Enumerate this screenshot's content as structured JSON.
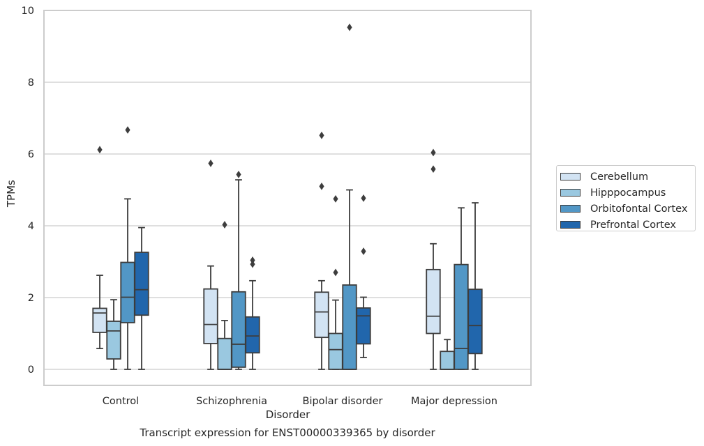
{
  "caption": "Transcript expression for ENST00000339365 by disorder",
  "chart_data": {
    "type": "box",
    "xlabel": "Disorder",
    "ylabel": "TPMs",
    "ylim": [
      -0.45,
      10
    ],
    "yticks": [
      0,
      2,
      4,
      6,
      8,
      10
    ],
    "grid": "horizontal",
    "legend_position": "right",
    "categories": [
      "Control",
      "Schizophrenia",
      "Bipolar disorder",
      "Major depression"
    ],
    "series": [
      {
        "name": "Cerebellum",
        "color": "#d2e3f3",
        "boxes": [
          {
            "whisker_low": 0.58,
            "q1": 1.03,
            "median": 1.57,
            "q3": 1.7,
            "whisker_high": 2.62,
            "outliers": [
              6.12
            ]
          },
          {
            "whisker_low": 0.0,
            "q1": 0.72,
            "median": 1.25,
            "q3": 2.24,
            "whisker_high": 2.88,
            "outliers": [
              5.74
            ]
          },
          {
            "whisker_low": 0.0,
            "q1": 0.89,
            "median": 1.6,
            "q3": 2.15,
            "whisker_high": 2.47,
            "outliers": [
              5.1,
              6.52
            ]
          },
          {
            "whisker_low": 0.0,
            "q1": 1.0,
            "median": 1.48,
            "q3": 2.78,
            "whisker_high": 3.5,
            "outliers": [
              5.58,
              6.04
            ]
          }
        ]
      },
      {
        "name": "Hipppocampus",
        "color": "#9ac8e0",
        "boxes": [
          {
            "whisker_low": 0.0,
            "q1": 0.29,
            "median": 1.07,
            "q3": 1.34,
            "whisker_high": 1.94,
            "outliers": []
          },
          {
            "whisker_low": 0.0,
            "q1": 0.0,
            "median": 0.0,
            "q3": 0.86,
            "whisker_high": 1.36,
            "outliers": [
              4.03
            ]
          },
          {
            "whisker_low": 0.0,
            "q1": 0.0,
            "median": 0.55,
            "q3": 1.0,
            "whisker_high": 1.93,
            "outliers": [
              2.7,
              4.75
            ]
          },
          {
            "whisker_low": 0.0,
            "q1": 0.0,
            "median": 0.0,
            "q3": 0.5,
            "whisker_high": 0.83,
            "outliers": []
          }
        ]
      },
      {
        "name": "Orbitofontal Cortex",
        "color": "#5297c6",
        "boxes": [
          {
            "whisker_low": 0.0,
            "q1": 1.3,
            "median": 2.01,
            "q3": 2.98,
            "whisker_high": 4.75,
            "outliers": [
              6.67
            ]
          },
          {
            "whisker_low": 0.0,
            "q1": 0.06,
            "median": 0.7,
            "q3": 2.16,
            "whisker_high": 5.28,
            "outliers": [
              5.43
            ]
          },
          {
            "whisker_low": 0.0,
            "q1": 0.0,
            "median": 0.0,
            "q3": 2.35,
            "whisker_high": 5.0,
            "outliers": [
              9.53
            ]
          },
          {
            "whisker_low": 0.0,
            "q1": 0.0,
            "median": 0.58,
            "q3": 2.92,
            "whisker_high": 4.5,
            "outliers": []
          }
        ]
      },
      {
        "name": "Prefrontal Cortex",
        "color": "#2166ac",
        "boxes": [
          {
            "whisker_low": 0.0,
            "q1": 1.51,
            "median": 2.22,
            "q3": 3.26,
            "whisker_high": 3.95,
            "outliers": []
          },
          {
            "whisker_low": 0.0,
            "q1": 0.46,
            "median": 0.93,
            "q3": 1.46,
            "whisker_high": 2.47,
            "outliers": [
              2.93,
              3.04
            ]
          },
          {
            "whisker_low": 0.33,
            "q1": 0.71,
            "median": 1.49,
            "q3": 1.71,
            "whisker_high": 2.01,
            "outliers": [
              3.29,
              4.77
            ]
          },
          {
            "whisker_low": 0.0,
            "q1": 0.44,
            "median": 1.22,
            "q3": 2.23,
            "whisker_high": 4.64,
            "outliers": []
          }
        ]
      }
    ]
  }
}
